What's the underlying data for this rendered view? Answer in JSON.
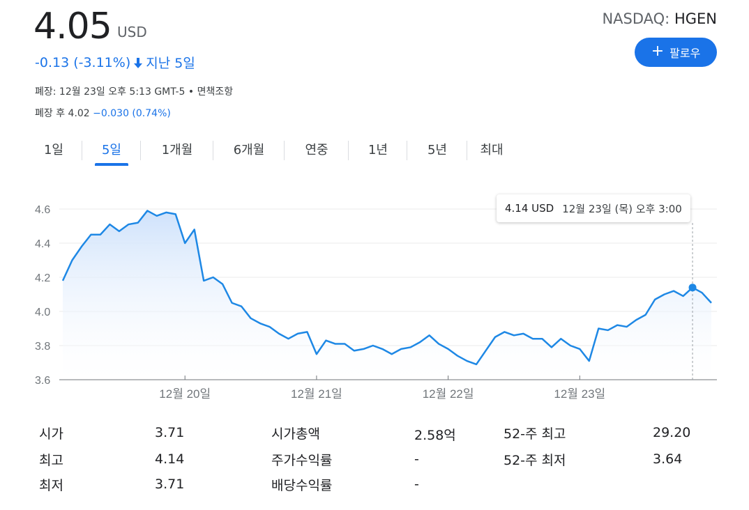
{
  "quote": {
    "price": "4.05",
    "currency": "USD",
    "exchange": "NASDAQ:",
    "ticker": "HGEN",
    "change": "-0.13 (-3.11%)",
    "period": "지난 5일",
    "follow_label": "팔로우",
    "close_info": "폐장: 12월 23일 오후 5:13 GMT-5 • 면책조항",
    "after_hours_prefix": "폐장 후 4.02",
    "after_hours_change": "−0.030 (0.74%)"
  },
  "tabs": [
    {
      "label": "1일",
      "active": false
    },
    {
      "label": "5일",
      "active": true
    },
    {
      "label": "1개월",
      "active": false
    },
    {
      "label": "6개월",
      "active": false
    },
    {
      "label": "연중",
      "active": false
    },
    {
      "label": "1년",
      "active": false
    },
    {
      "label": "5년",
      "active": false
    },
    {
      "label": "최대",
      "active": false
    }
  ],
  "tooltip": {
    "value": "4.14 USD",
    "time": "12월 23일 (목) 오후 3:00"
  },
  "colors": {
    "accent": "#1a73e8",
    "line": "#1e88e5",
    "fill_top": "#cfe2fb"
  },
  "chart_data": {
    "type": "area",
    "series": [
      {
        "values": [
          4.18,
          4.3,
          4.38,
          4.45,
          4.45,
          4.51,
          4.47,
          4.51,
          4.52,
          4.59,
          4.56,
          4.58,
          4.57,
          4.4,
          4.48,
          4.18,
          4.2,
          4.16,
          4.05,
          4.03,
          3.96,
          3.93,
          3.91,
          3.87,
          3.84,
          3.87,
          3.88,
          3.75,
          3.83,
          3.81,
          3.81,
          3.77,
          3.78,
          3.8,
          3.78,
          3.75,
          3.78,
          3.79,
          3.82,
          3.86,
          3.81,
          3.78,
          3.74,
          3.71,
          3.69,
          3.77,
          3.85,
          3.88,
          3.86,
          3.87,
          3.84,
          3.84,
          3.79,
          3.84,
          3.8,
          3.78,
          3.71,
          3.9,
          3.89,
          3.92,
          3.91,
          3.95,
          3.98,
          4.07,
          4.1,
          4.12,
          4.09,
          4.14,
          4.11,
          4.05
        ]
      }
    ],
    "x_labels": [
      "12월 20일",
      "12월 21일",
      "12월 22일",
      "12월 23일"
    ],
    "x_label_index": [
      13,
      27,
      41,
      55
    ],
    "y_ticks": [
      3.6,
      3.8,
      4.0,
      4.2,
      4.4,
      4.6
    ],
    "y_tick_labels": [
      "3.6",
      "3.8",
      "4.0",
      "4.2",
      "4.4",
      "4.6"
    ],
    "ylim": [
      3.6,
      4.6
    ],
    "highlight_index": 67,
    "grid": true
  },
  "stats": [
    {
      "label": "시가",
      "value": "3.71"
    },
    {
      "label": "최고",
      "value": "4.14"
    },
    {
      "label": "최저",
      "value": "3.71"
    },
    {
      "label": "시가총액",
      "value": "2.58억"
    },
    {
      "label": "주가수익률",
      "value": "-"
    },
    {
      "label": "배당수익률",
      "value": "-"
    },
    {
      "label": "52-주 최고",
      "value": "29.20"
    },
    {
      "label": "52-주 최저",
      "value": "3.64"
    }
  ]
}
